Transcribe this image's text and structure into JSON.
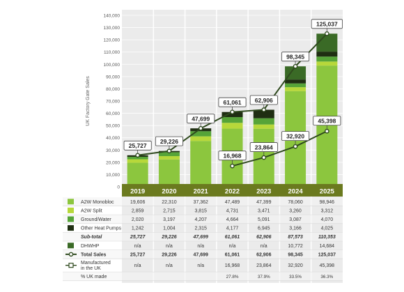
{
  "colors": {
    "panel": "#ebebeb",
    "gridline": "#ffffff",
    "years_band": "#6b7a1f",
    "year_text": "#ffffff",
    "a2w_mono": "#8cc63e",
    "a2w_split": "#b7d83a",
    "ground_water": "#56a438",
    "other_hp": "#1f2e12",
    "dhwhp": "#3a6a26",
    "line": "#2f4a1e",
    "table_alt": "#f3f3f3",
    "text": "#333333"
  },
  "chart_data": {
    "type": "stacked-bar-with-lines",
    "ylabel": "UK Factory Gate Sales",
    "ylim": [
      0,
      140000
    ],
    "yticks": [
      0,
      10000,
      20000,
      30000,
      40000,
      50000,
      60000,
      70000,
      80000,
      90000,
      100000,
      110000,
      120000,
      130000,
      140000
    ],
    "ytick_labels": [
      "0",
      "10,000",
      "20,000",
      "30,000",
      "40,000",
      "50,000",
      "60,000",
      "70,000",
      "80,000",
      "90,000",
      "100,000",
      "110,000",
      "120,000",
      "130,000",
      "140,000"
    ],
    "categories": [
      "2019",
      "2020",
      "2021",
      "2022",
      "2023",
      "2024",
      "2025"
    ],
    "series": [
      {
        "name": "A2W Monobloc",
        "color_key": "a2w_mono",
        "values": [
          19606,
          22310,
          37362,
          47489,
          47399,
          78060,
          98946
        ]
      },
      {
        "name": "A2W Split",
        "color_key": "a2w_split",
        "values": [
          2859,
          2715,
          3815,
          4731,
          3471,
          3260,
          3312
        ]
      },
      {
        "name": "Ground/Water",
        "color_key": "ground_water",
        "values": [
          2020,
          3197,
          4207,
          4664,
          5091,
          3087,
          4070
        ]
      },
      {
        "name": "Other Heat Pumps",
        "color_key": "other_hp",
        "values": [
          1242,
          1004,
          2315,
          4177,
          6945,
          3166,
          4025
        ]
      },
      {
        "name": "DHWHP",
        "color_key": "dhwhp",
        "values": [
          0,
          0,
          0,
          0,
          0,
          10772,
          14684
        ]
      }
    ],
    "lines": [
      {
        "name": "Total Sales",
        "values": [
          25727,
          29226,
          47699,
          61061,
          62906,
          98345,
          125037
        ],
        "labels": [
          "25,727",
          "29,226",
          "47,699",
          "61,061",
          "62,906",
          "98,345",
          "125,037"
        ]
      },
      {
        "name": "Manufactured in the UK",
        "values": [
          null,
          null,
          null,
          16968,
          23864,
          32920,
          45398
        ],
        "labels": [
          "",
          "",
          "",
          "16,968",
          "23,864",
          "32,920",
          "45,398"
        ]
      }
    ],
    "table": {
      "rows": [
        {
          "label": "A2W Monobloc",
          "key": "a2w_mono",
          "bold": false,
          "italic": false,
          "values": [
            "19,606",
            "22,310",
            "37,362",
            "47,489",
            "47,399",
            "78,060",
            "98,946"
          ]
        },
        {
          "label": "A2W Split",
          "key": "a2w_split",
          "bold": false,
          "italic": false,
          "values": [
            "2,859",
            "2,715",
            "3,815",
            "4,731",
            "3,471",
            "3,260",
            "3,312"
          ]
        },
        {
          "label": "Ground/Water",
          "key": "ground_water",
          "bold": false,
          "italic": false,
          "values": [
            "2,020",
            "3,197",
            "4,207",
            "4,664",
            "5,091",
            "3,087",
            "4,070"
          ]
        },
        {
          "label": "Other Heat Pumps",
          "key": "other_hp",
          "bold": false,
          "italic": false,
          "values": [
            "1,242",
            "1,004",
            "2,315",
            "4,177",
            "6,945",
            "3,166",
            "4,025"
          ]
        },
        {
          "label": "Sub-total",
          "key": "",
          "bold": true,
          "italic": true,
          "values": [
            "25,727",
            "29,226",
            "47,699",
            "61,061",
            "62,906",
            "87,573",
            "110,353"
          ]
        },
        {
          "label": "DHWHP",
          "key": "dhwhp",
          "bold": false,
          "italic": false,
          "values": [
            "n/a",
            "n/a",
            "n/a",
            "n/a",
            "n/a",
            "10,772",
            "14,684"
          ]
        },
        {
          "label": "Total Sales",
          "key": "line-total",
          "bold": true,
          "italic": false,
          "values": [
            "25,727",
            "29,226",
            "47,699",
            "61,061",
            "62,906",
            "98,345",
            "125,037"
          ]
        },
        {
          "label": "Manufactured|in the UK",
          "key": "line-uk",
          "bold": false,
          "italic": false,
          "values": [
            "n/a",
            "n/a",
            "n/a",
            "16,968",
            "23,864",
            "32,920",
            "45,398"
          ]
        },
        {
          "label": "% UK made",
          "key": "",
          "bold": false,
          "italic": false,
          "values": [
            "",
            "",
            "",
            "27.8%",
            "37.9%",
            "33.5%",
            "36.3%"
          ]
        }
      ]
    }
  }
}
